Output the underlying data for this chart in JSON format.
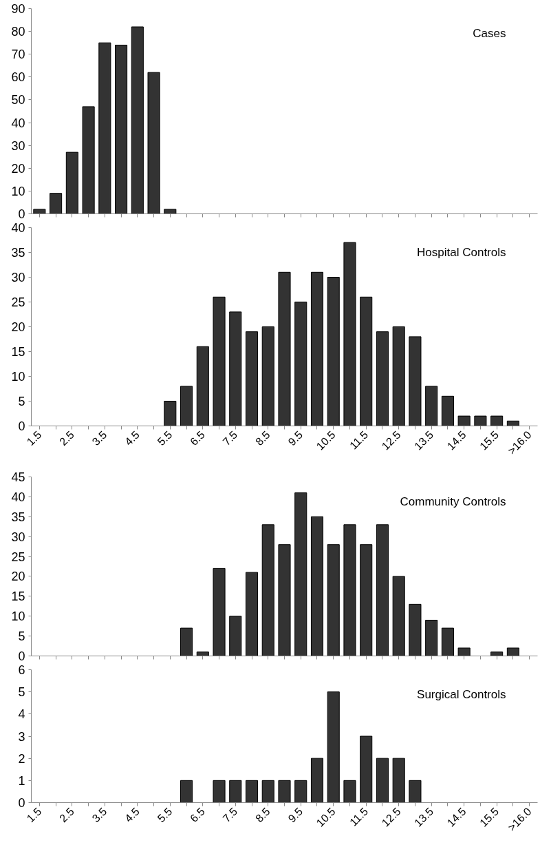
{
  "chart_data": [
    {
      "type": "bar",
      "title": "Cases",
      "categories": [
        null,
        null,
        null,
        null,
        null,
        null,
        null,
        null,
        null,
        null,
        null,
        null,
        null,
        null,
        null,
        null,
        null,
        null,
        null,
        null,
        null,
        null,
        null,
        null,
        null,
        null,
        null,
        null,
        null,
        null,
        null
      ],
      "series": [
        {
          "color": "#333333",
          "values": [
            2,
            9,
            27,
            47,
            75,
            74,
            82,
            62,
            2,
            null,
            null,
            null,
            null,
            null,
            null,
            null,
            null,
            null,
            null,
            null,
            null,
            null,
            null,
            null,
            null,
            null,
            null,
            null,
            null,
            null,
            null
          ]
        }
      ],
      "ylim": [
        0,
        90
      ],
      "yticks": [
        0,
        10,
        20,
        30,
        40,
        50,
        60,
        70,
        80,
        90
      ],
      "tick_labels": "y"
    },
    {
      "type": "bar",
      "title": "Hospital Controls",
      "categories": [
        "1.5",
        null,
        "2.5",
        null,
        "3.5",
        null,
        "4.5",
        null,
        "5.5",
        null,
        "6.5",
        null,
        "7.5",
        null,
        "8.5",
        null,
        "9.5",
        null,
        "10.5",
        null,
        "11.5",
        null,
        "12.5",
        null,
        "13.5",
        null,
        "14.5",
        null,
        "15.5",
        null,
        ">16.0"
      ],
      "series": [
        {
          "color": "#333333",
          "values": [
            null,
            null,
            null,
            null,
            null,
            null,
            null,
            null,
            5,
            8,
            16,
            26,
            23,
            19,
            20,
            31,
            25,
            31,
            30,
            37,
            26,
            19,
            20,
            18,
            8,
            6,
            2,
            2,
            2,
            1,
            null
          ]
        }
      ],
      "ylim": [
        0,
        40
      ],
      "yticks": [
        0,
        5,
        10,
        15,
        20,
        25,
        30,
        35,
        40
      ]
    },
    {
      "type": "bar",
      "title": "Community Controls",
      "categories": [
        null,
        null,
        null,
        null,
        null,
        null,
        null,
        null,
        null,
        null,
        null,
        null,
        null,
        null,
        null,
        null,
        null,
        null,
        null,
        null,
        null,
        null,
        null,
        null,
        null,
        null,
        null,
        null,
        null,
        null,
        null
      ],
      "series": [
        {
          "color": "#333333",
          "values": [
            null,
            null,
            null,
            null,
            null,
            null,
            null,
            null,
            null,
            7,
            1,
            22,
            10,
            21,
            33,
            28,
            41,
            35,
            28,
            33,
            28,
            33,
            20,
            13,
            9,
            7,
            2,
            null,
            1,
            2,
            null
          ]
        }
      ],
      "ylim": [
        0,
        45
      ],
      "yticks": [
        0,
        5,
        10,
        15,
        20,
        25,
        30,
        35,
        40,
        45
      ],
      "tick_labels": "y"
    },
    {
      "type": "bar",
      "title": "Surgical Controls",
      "categories": [
        "1.5",
        null,
        "2.5",
        null,
        "3.5",
        null,
        "4.5",
        null,
        "5.5",
        null,
        "6.5",
        null,
        "7.5",
        null,
        "8.5",
        null,
        "9.5",
        null,
        "10.5",
        null,
        "11.5",
        null,
        "12.5",
        null,
        "13.5",
        null,
        "14.5",
        null,
        "15.5",
        null,
        ">16.0"
      ],
      "series": [
        {
          "color": "#333333",
          "values": [
            null,
            null,
            null,
            null,
            null,
            null,
            null,
            null,
            null,
            1,
            null,
            1,
            1,
            1,
            1,
            1,
            1,
            2,
            5,
            1,
            3,
            2,
            2,
            1,
            null,
            null,
            null,
            null,
            null,
            null,
            null
          ]
        }
      ],
      "ylim": [
        0,
        6
      ],
      "yticks": [
        0,
        1,
        2,
        3,
        4,
        5,
        6
      ]
    }
  ]
}
